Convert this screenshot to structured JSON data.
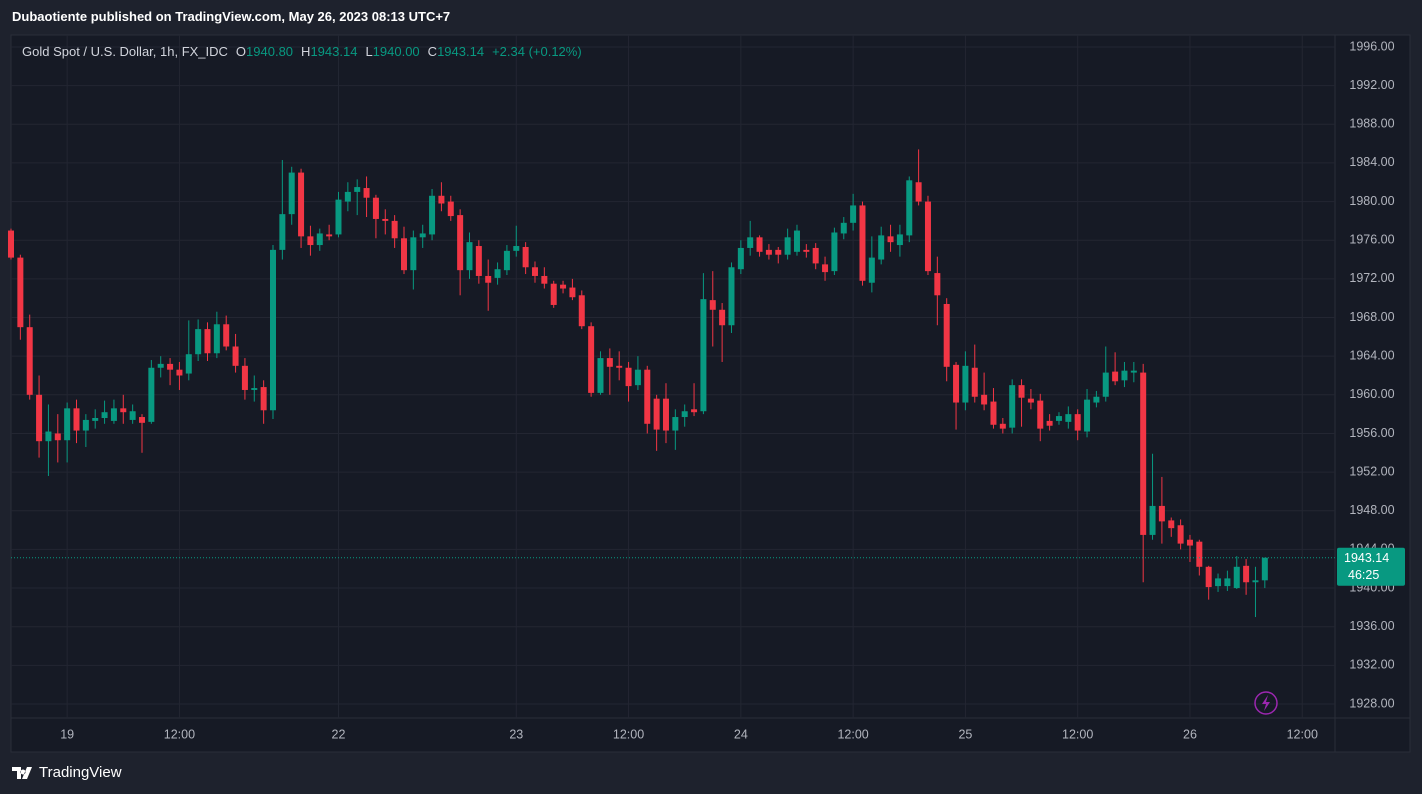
{
  "caption": "Dubaotiente published on TradingView.com, May 26, 2023 08:13 UTC+7",
  "brand": "TradingView",
  "chart_data": {
    "type": "candlestick",
    "legend_header": {
      "symbol": "Gold Spot / U.S. Dollar, 1h, FX_IDC",
      "o_label": "O",
      "open": "1940.80",
      "h_label": "H",
      "high": "1943.14",
      "l_label": "L",
      "low": "1940.00",
      "c_label": "C",
      "close": "1943.14",
      "change": "+2.34 (+0.12%)"
    },
    "categories": [
      null,
      null,
      null,
      null,
      null,
      null,
      "19",
      null,
      null,
      null,
      null,
      null,
      null,
      null,
      null,
      null,
      null,
      null,
      "12:00",
      null,
      null,
      null,
      null,
      null,
      null,
      null,
      null,
      null,
      null,
      null,
      null,
      null,
      null,
      null,
      null,
      "22",
      null,
      null,
      null,
      null,
      null,
      null,
      null,
      null,
      null,
      null,
      null,
      null,
      null,
      null,
      null,
      null,
      null,
      null,
      "23",
      null,
      null,
      null,
      null,
      null,
      null,
      null,
      null,
      null,
      null,
      null,
      "12:00",
      null,
      null,
      null,
      null,
      null,
      null,
      null,
      null,
      null,
      null,
      null,
      "24",
      null,
      null,
      null,
      null,
      null,
      null,
      null,
      null,
      null,
      null,
      null,
      "12:00",
      null,
      null,
      null,
      null,
      null,
      null,
      null,
      null,
      null,
      null,
      null,
      "25",
      null,
      null,
      null,
      null,
      null,
      null,
      null,
      null,
      null,
      null,
      null,
      "12:00",
      null,
      null,
      null,
      null,
      null,
      null,
      null,
      null,
      null,
      null,
      null,
      "26",
      null,
      null,
      null,
      null,
      null,
      null,
      null,
      null,
      null,
      null,
      null,
      "12:00",
      null,
      null,
      null
    ],
    "open": [
      1977,
      1974.2,
      1967,
      1960,
      1955.2,
      1956,
      1955.3,
      1958.6,
      1956.3,
      1957.3,
      1957.6,
      1957.3,
      1958.6,
      1957.4,
      1957.7,
      1957.2,
      1962.8,
      1963.2,
      1962.6,
      1962.2,
      1964.2,
      1966.8,
      1964.3,
      1967.3,
      1965,
      1963,
      1960.5,
      1960.8,
      1958.4,
      1975,
      1978.7,
      1983,
      1976.4,
      1975.5,
      1976.6,
      1976.6,
      1980,
      1981,
      1981.4,
      1980.4,
      1978.2,
      1978,
      1976.2,
      1972.9,
      1976.3,
      1976.6,
      1980.6,
      1980,
      1978.6,
      1972.9,
      1975.4,
      1972.3,
      1972.1,
      1972.9,
      1974.9,
      1975.3,
      1973.2,
      1972.3,
      1971.5,
      1971.4,
      1971.1,
      1970.3,
      1967.1,
      1960.2,
      1963.8,
      1963,
      1962.8,
      1961,
      1962.6,
      1959.6,
      1959.6,
      1956.3,
      1957.7,
      1958.5,
      1958.3,
      1969.8,
      1968.8,
      1967.2,
      1973,
      1975.2,
      1976.3,
      1975,
      1975,
      1974.5,
      1974.8,
      1975,
      1975.2,
      1973.5,
      1972.8,
      1976.7,
      1977.8,
      1979.6,
      1971.6,
      1974,
      1976.4,
      1975.5,
      1976.5,
      1982,
      1980,
      1972.6,
      1969.4,
      1963.1,
      1959.2,
      1962.8,
      1960,
      1959.3,
      1957,
      1956.6,
      1961,
      1959.6,
      1959.4,
      1957.3,
      1957.3,
      1957.2,
      1958,
      1956.2,
      1959.2,
      1959.8,
      1962.4,
      1961.5,
      1962.3,
      1962.3,
      1945.5,
      1948.5,
      1947,
      1946.5,
      1945,
      1944.8,
      1942.2,
      1940.2,
      1940.2,
      1940,
      1942.3,
      1940.6,
      1940.8,
      null,
      null,
      null,
      null,
      null,
      null,
      null
    ],
    "high": [
      1977.2,
      1974.5,
      1968.3,
      1962,
      1959,
      1958,
      1959.2,
      1959.5,
      1958,
      1958.5,
      1959.4,
      1959.5,
      1960,
      1959,
      1958,
      1963.6,
      1964,
      1963.8,
      1963.4,
      1967.7,
      1967.8,
      1967.5,
      1968.6,
      1968.2,
      1966.3,
      1963.8,
      1962,
      1961.5,
      1975.5,
      1984.3,
      1983.6,
      1983.4,
      1977.5,
      1977.2,
      1977.6,
      1981,
      1982,
      1982.3,
      1982.6,
      1980.7,
      1979.2,
      1978.6,
      1977.4,
      1977,
      1977.6,
      1981.3,
      1982,
      1980.6,
      1979.2,
      1976.8,
      1976,
      1974,
      1973.7,
      1975.5,
      1977.5,
      1975.8,
      1973.8,
      1973.2,
      1971.8,
      1971.8,
      1972,
      1970.8,
      1967.5,
      1964.5,
      1964.8,
      1964.5,
      1963.4,
      1964,
      1963,
      1960,
      1961.2,
      1958.5,
      1959,
      1961.2,
      1972.6,
      1972.8,
      1969.5,
      1973.7,
      1976,
      1978,
      1976.5,
      1975.6,
      1975.3,
      1977.2,
      1977.6,
      1975.6,
      1975.7,
      1974.3,
      1977.3,
      1978.4,
      1980.8,
      1980,
      1976.4,
      1977.4,
      1977.6,
      1977.6,
      1982.6,
      1985.4,
      1980.6,
      1974.3,
      1970,
      1963.4,
      1964.5,
      1965.2,
      1962.3,
      1960.7,
      1957.6,
      1961.6,
      1961.6,
      1960.6,
      1960.1,
      1958,
      1958.2,
      1958.8,
      1958.5,
      1960.6,
      1960.4,
      1965,
      1964.4,
      1963.4,
      1963.4,
      1963.2,
      1953.9,
      1951.5,
      1947.3,
      1947.1,
      1945.5,
      1945,
      1942.3,
      1941.5,
      1941.8,
      1943.3,
      1943,
      1942.2,
      1943.14,
      null,
      null,
      null,
      null,
      null,
      null,
      null
    ],
    "low": [
      1974,
      1965.7,
      1959.5,
      1953.5,
      1951.6,
      1953,
      1953,
      1955,
      1954.6,
      1956.5,
      1957,
      1957,
      1957,
      1957,
      1954,
      1957,
      1961.8,
      1961,
      1960.5,
      1961.5,
      1963.5,
      1963.5,
      1963.8,
      1964.6,
      1962.3,
      1959.5,
      1959.3,
      1957,
      1957.5,
      1974,
      1977.6,
      1975.2,
      1974.4,
      1974.9,
      1976,
      1976.3,
      1979,
      1978.6,
      1978.4,
      1976.2,
      1976.6,
      1975.2,
      1972.5,
      1970.9,
      1975.2,
      1976,
      1979,
      1978,
      1970.3,
      1972,
      1971.5,
      1968.7,
      1971.4,
      1972.4,
      1974.3,
      1972.5,
      1971.6,
      1971,
      1969,
      1970.5,
      1969.8,
      1966.8,
      1959.8,
      1960,
      1960,
      1961.5,
      1959.3,
      1960.5,
      1956,
      1954.2,
      1955,
      1954.3,
      1956.7,
      1957.8,
      1958,
      1965,
      1963.4,
      1966.4,
      1972.5,
      1974.4,
      1974.3,
      1974,
      1973.6,
      1974,
      1974.4,
      1974.2,
      1973,
      1971.8,
      1972.4,
      1976.1,
      1977,
      1971.3,
      1970.6,
      1973.5,
      1974.8,
      1974.3,
      1975.8,
      1979.6,
      1972.4,
      1967.2,
      1961.4,
      1956.4,
      1958.4,
      1959.2,
      1958.4,
      1956.5,
      1956,
      1956,
      1956.7,
      1958.5,
      1955.2,
      1956.3,
      1956.9,
      1956.5,
      1955.3,
      1955.6,
      1958.7,
      1959.3,
      1961,
      1960.8,
      1961.3,
      1940.6,
      1945,
      1944.6,
      1945.3,
      1944,
      1942.7,
      1941.3,
      1938.8,
      1939.6,
      1939.7,
      1939.9,
      1939.3,
      1937,
      1940,
      null,
      null,
      null,
      null,
      null,
      null,
      null
    ],
    "close": [
      1974.2,
      1967,
      1960,
      1955.2,
      1956.2,
      1955.3,
      1958.6,
      1956.3,
      1957.4,
      1957.6,
      1958.2,
      1958.6,
      1958.2,
      1958.3,
      1957.1,
      1962.8,
      1963.2,
      1962.6,
      1962,
      1964.2,
      1966.8,
      1964.3,
      1967.3,
      1965,
      1963,
      1960.5,
      1960.7,
      1958.4,
      1975,
      1978.7,
      1983,
      1976.4,
      1975.5,
      1976.7,
      1976.4,
      1980.2,
      1981,
      1981.5,
      1980.4,
      1978.2,
      1978,
      1976.2,
      1972.9,
      1976.3,
      1976.7,
      1980.6,
      1979.8,
      1978.5,
      1972.9,
      1975.8,
      1972.3,
      1971.6,
      1973,
      1974.9,
      1975.4,
      1973.2,
      1972.3,
      1971.5,
      1969.3,
      1971,
      1970.1,
      1967.1,
      1960.2,
      1963.8,
      1962.9,
      1962.8,
      1960.9,
      1962.6,
      1957,
      1956.4,
      1956.3,
      1957.7,
      1958.3,
      1958.2,
      1969.9,
      1968.8,
      1967.2,
      1973.2,
      1975.2,
      1976.3,
      1974.8,
      1974.5,
      1974.5,
      1976.3,
      1977,
      1974.8,
      1973.6,
      1972.7,
      1976.8,
      1977.8,
      1979.6,
      1971.8,
      1974.2,
      1976.5,
      1975.8,
      1976.6,
      1982.2,
      1980,
      1972.8,
      1970.3,
      1962.9,
      1959.2,
      1963,
      1959.8,
      1959,
      1956.9,
      1956.5,
      1961,
      1959.7,
      1959.2,
      1956.5,
      1956.8,
      1957.8,
      1958,
      1956.3,
      1959.5,
      1959.8,
      1962.3,
      1961.4,
      1962.5,
      1962.5,
      1945.5,
      1948.5,
      1946.9,
      1946.2,
      1944.6,
      1944.4,
      1942.2,
      1940.1,
      1941,
      1941,
      1942.2,
      1940.6,
      1940.8,
      1943.14,
      null,
      null,
      null,
      null,
      null,
      null,
      null
    ],
    "up_color": "#089981",
    "down_color": "#f23645",
    "grid": true,
    "ylim": [
      1926.55,
      1997.24
    ],
    "yticks": [
      {
        "value": 1928,
        "label": "1928.00"
      },
      {
        "value": 1932,
        "label": "1932.00"
      },
      {
        "value": 1936,
        "label": "1936.00"
      },
      {
        "value": 1940,
        "label": "1940.00"
      },
      {
        "value": 1944,
        "label": "1944.00"
      },
      {
        "value": 1948,
        "label": "1948.00"
      },
      {
        "value": 1952,
        "label": "1952.00"
      },
      {
        "value": 1956,
        "label": "1956.00"
      },
      {
        "value": 1960,
        "label": "1960.00"
      },
      {
        "value": 1964,
        "label": "1964.00"
      },
      {
        "value": 1968,
        "label": "1968.00"
      },
      {
        "value": 1972,
        "label": "1972.00"
      },
      {
        "value": 1976,
        "label": "1976.00"
      },
      {
        "value": 1980,
        "label": "1980.00"
      },
      {
        "value": 1984,
        "label": "1984.00"
      },
      {
        "value": 1988,
        "label": "1988.00"
      },
      {
        "value": 1992,
        "label": "1992.00"
      },
      {
        "value": 1996,
        "label": "1996.00"
      }
    ],
    "last_price": 1943.14,
    "countdown": "46:25"
  }
}
